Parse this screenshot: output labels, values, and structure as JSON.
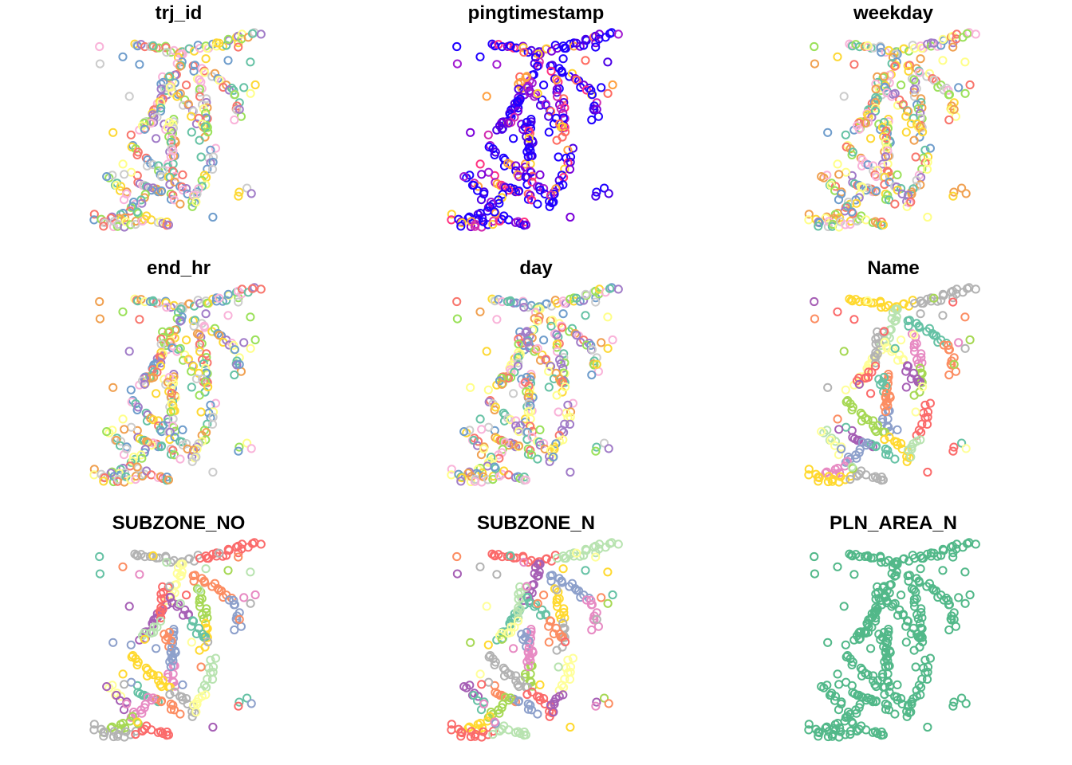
{
  "chart_data": [
    {
      "type": "scatter",
      "title": "trj_id",
      "palette": "mixed",
      "grid": false,
      "legend": "none"
    },
    {
      "type": "scatter",
      "title": "pingtimestamp",
      "palette": "sequential",
      "grid": false,
      "legend": "none"
    },
    {
      "type": "scatter",
      "title": "weekday",
      "palette": "mixed",
      "grid": false,
      "legend": "none"
    },
    {
      "type": "scatter",
      "title": "end_hr",
      "palette": "mixed",
      "grid": false,
      "legend": "none"
    },
    {
      "type": "scatter",
      "title": "day",
      "palette": "mixed",
      "grid": false,
      "legend": "none"
    },
    {
      "type": "scatter",
      "title": "Name",
      "palette": "regions",
      "grid": false,
      "legend": "none"
    },
    {
      "type": "scatter",
      "title": "SUBZONE_NO",
      "palette": "regions",
      "grid": false,
      "legend": "none"
    },
    {
      "type": "scatter",
      "title": "SUBZONE_N",
      "palette": "regions",
      "grid": false,
      "legend": "none"
    },
    {
      "type": "scatter",
      "title": "PLN_AREA_N",
      "palette": "single",
      "grid": false,
      "legend": "none"
    }
  ],
  "colors": {
    "mixed": [
      "#f8766d",
      "#f0a050",
      "#fdd835",
      "#9be15a",
      "#66c2a5",
      "#6f9dcc",
      "#a17cc8",
      "#f9b3d9",
      "#cccccc",
      "#ffff88"
    ],
    "sequential": [
      "#1f00ff",
      "#4b00e6",
      "#7a00d9",
      "#a21bd1",
      "#d02ab0",
      "#ff3080",
      "#ff6a60",
      "#ffa040",
      "#ffd430"
    ],
    "regions": [
      "#66c2a5",
      "#fc8d62",
      "#8da0cb",
      "#e78ac3",
      "#a6d854",
      "#ffd92f",
      "#b3b3b3",
      "#fb6a6a",
      "#b8e3b0",
      "#ffff99",
      "#a65fb5"
    ],
    "single": [
      "#52b889"
    ]
  }
}
